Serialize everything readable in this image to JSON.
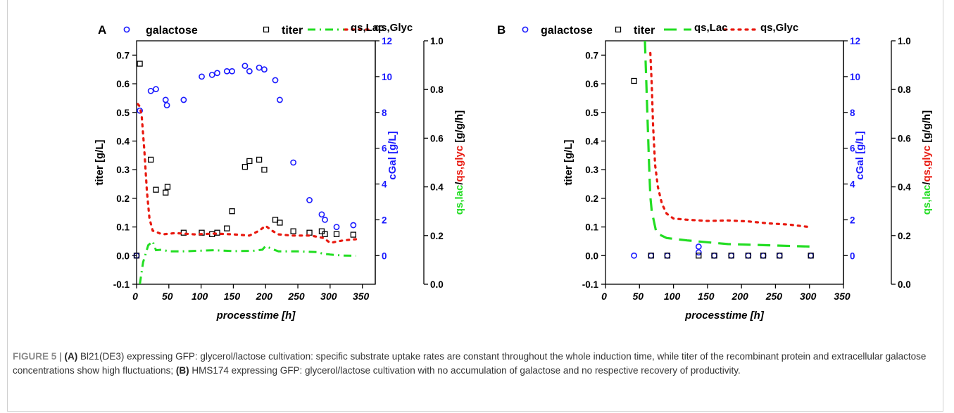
{
  "figure": {
    "caption": {
      "lead": "FIGURE 5 | ",
      "a_tag": "(A)",
      "a_text": " Bl21(DE3) expressing GFP: glycerol/lactose cultivation: specific substrate uptake rates are constant throughout the whole induction time, while titer of the recombinant protein and extracellular galactose concentrations show high fluctuations; ",
      "b_tag": "(B)",
      "b_text": " HMS174 expressing GFP: glycerol/lactose cultivation with no accumulation of galactose and no respective recovery of productivity."
    }
  },
  "colors": {
    "galactose": "#1a1aff",
    "titer": "#000000",
    "qs_lac": "#22dd22",
    "qs_glyc": "#e8190f",
    "cgal_axis": "#1a1aff"
  },
  "chart_data": [
    {
      "panel": "A",
      "type": "scatter",
      "xlabel": "processtime [h]",
      "xlim": [
        0,
        370
      ],
      "xticks": [
        0,
        50,
        100,
        150,
        200,
        250,
        300,
        350
      ],
      "ylabel_left": "titer [g/L]",
      "ylim_left": [
        -0.1,
        0.75
      ],
      "yticks_left": [
        -0.1,
        0.0,
        0.1,
        0.2,
        0.3,
        0.4,
        0.5,
        0.6,
        0.7
      ],
      "ylabel_mid": "cGal [g/L]",
      "ylim_mid": [
        -1.6,
        12
      ],
      "yticks_mid": [
        0,
        2,
        4,
        6,
        8,
        10,
        12
      ],
      "ylabel_right_parts": [
        "qs,lac",
        "/",
        "qs,glyc",
        " [g/g/h]"
      ],
      "ylim_right": [
        0.0,
        1.0
      ],
      "yticks_right": [
        0.0,
        0.2,
        0.4,
        0.6,
        0.8,
        1.0
      ],
      "legend": [
        "galactose",
        "titer",
        "qs,Lac",
        "qs,Glyc"
      ],
      "series": [
        {
          "name": "galactose",
          "axis": "mid",
          "style": "circle",
          "x": [
            0,
            5,
            22,
            30,
            45,
            47,
            73,
            101,
            117,
            125,
            140,
            148,
            168,
            175,
            190,
            198,
            215,
            222,
            243,
            268,
            287,
            292,
            310,
            336
          ],
          "y": [
            0.0,
            8.1,
            9.2,
            9.3,
            8.7,
            8.4,
            8.7,
            10.0,
            10.1,
            10.2,
            10.3,
            10.3,
            10.6,
            10.3,
            10.5,
            10.4,
            9.8,
            8.7,
            5.2,
            3.1,
            2.3,
            2.0,
            1.6,
            1.7
          ]
        },
        {
          "name": "titer",
          "axis": "left",
          "style": "square",
          "x": [
            0,
            5,
            22,
            30,
            45,
            48,
            73,
            101,
            117,
            125,
            140,
            148,
            168,
            175,
            190,
            198,
            215,
            222,
            243,
            268,
            287,
            292,
            310,
            336
          ],
          "y": [
            0.0,
            0.67,
            0.335,
            0.23,
            0.22,
            0.24,
            0.08,
            0.08,
            0.075,
            0.08,
            0.095,
            0.155,
            0.31,
            0.33,
            0.335,
            0.3,
            0.125,
            0.115,
            0.085,
            0.08,
            0.085,
            0.075,
            0.075,
            0.073
          ]
        },
        {
          "name": "qs,Lac",
          "axis": "right",
          "style": "dashdot",
          "x": [
            5,
            10,
            18,
            25,
            30,
            40,
            50,
            70,
            100,
            120,
            150,
            180,
            195,
            200,
            210,
            220,
            250,
            280,
            290,
            300,
            320,
            340
          ],
          "y": [
            0.0,
            0.09,
            0.16,
            0.176,
            0.14,
            0.142,
            0.135,
            0.135,
            0.138,
            0.14,
            0.136,
            0.137,
            0.142,
            0.157,
            0.145,
            0.135,
            0.135,
            0.132,
            0.125,
            0.122,
            0.118,
            0.117
          ]
        },
        {
          "name": "qs,Glyc",
          "axis": "right",
          "style": "dotted",
          "x": [
            2,
            5,
            8,
            12,
            16,
            20,
            25,
            30,
            40,
            60,
            90,
            120,
            150,
            175,
            190,
            200,
            210,
            220,
            240,
            270,
            290,
            300,
            320,
            340
          ],
          "y": [
            0.74,
            0.73,
            0.69,
            0.55,
            0.38,
            0.27,
            0.22,
            0.215,
            0.205,
            0.21,
            0.205,
            0.208,
            0.205,
            0.2,
            0.22,
            0.24,
            0.22,
            0.205,
            0.2,
            0.2,
            0.19,
            0.17,
            0.18,
            0.185
          ]
        }
      ]
    },
    {
      "panel": "B",
      "type": "scatter",
      "xlabel": "processtime [h]",
      "xlim": [
        0,
        350
      ],
      "xticks": [
        0,
        50,
        100,
        150,
        200,
        250,
        300,
        350
      ],
      "ylabel_left": "titer [g/L]",
      "ylim_left": [
        -0.1,
        0.75
      ],
      "yticks_left": [
        -0.1,
        0.0,
        0.1,
        0.2,
        0.3,
        0.4,
        0.5,
        0.6,
        0.7
      ],
      "ylabel_mid": "cGal [g/L]",
      "ylim_mid": [
        -1.6,
        12
      ],
      "yticks_mid": [
        0,
        2,
        4,
        6,
        8,
        10,
        12
      ],
      "ylabel_right_parts": [
        "qs,lac",
        "/",
        "qs,glyc",
        " [g/g/h]"
      ],
      "ylim_right": [
        0.0,
        1.0
      ],
      "yticks_right": [
        0.0,
        0.2,
        0.4,
        0.6,
        0.8,
        1.0
      ],
      "legend": [
        "galactose",
        "titer",
        "qs,Lac",
        "qs,Glyc"
      ],
      "series": [
        {
          "name": "galactose",
          "axis": "mid",
          "style": "circle",
          "x": [
            42,
            67,
            91,
            137,
            137,
            160,
            185,
            210,
            232,
            256,
            302
          ],
          "y": [
            0.0,
            0.0,
            0.0,
            0.5,
            0.18,
            0.0,
            0.0,
            0.0,
            0.0,
            0.0,
            0.0
          ]
        },
        {
          "name": "titer",
          "axis": "left",
          "style": "square",
          "x": [
            42,
            67,
            91,
            137,
            160,
            185,
            210,
            232,
            256,
            302
          ],
          "y": [
            0.61,
            0.0,
            0.0,
            0.0,
            0.0,
            0.0,
            0.0,
            0.0,
            0.0,
            0.0
          ]
        },
        {
          "name": "qs,Lac",
          "axis": "right",
          "style": "dashed",
          "x": [
            58,
            61,
            64,
            66,
            68,
            75,
            90,
            120,
            180,
            240,
            300
          ],
          "y": [
            1.0,
            0.75,
            0.5,
            0.36,
            0.3,
            0.21,
            0.19,
            0.18,
            0.165,
            0.16,
            0.155
          ]
        },
        {
          "name": "qs,Glyc",
          "axis": "right",
          "style": "dotted",
          "x": [
            66,
            68,
            70,
            73,
            77,
            83,
            90,
            100,
            120,
            150,
            180,
            210,
            240,
            270,
            300
          ],
          "y": [
            0.95,
            0.82,
            0.65,
            0.49,
            0.4,
            0.33,
            0.29,
            0.27,
            0.265,
            0.26,
            0.262,
            0.258,
            0.25,
            0.245,
            0.235
          ]
        }
      ]
    }
  ]
}
